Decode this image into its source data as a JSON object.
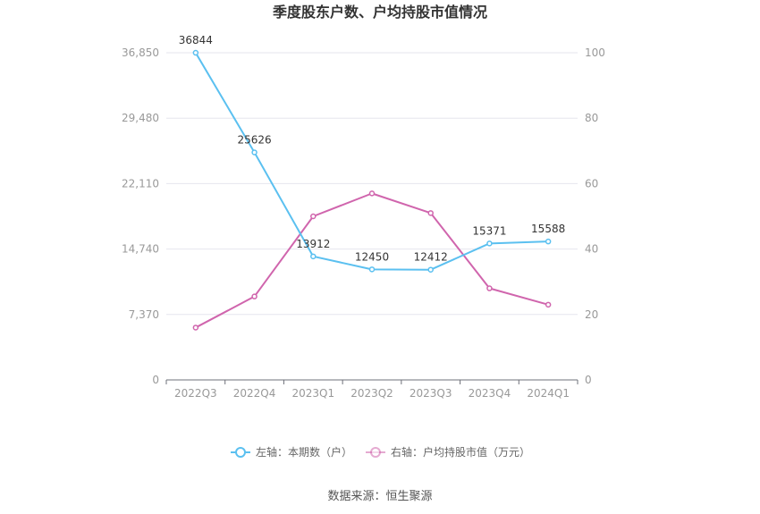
{
  "chart_data": {
    "type": "line",
    "title": "季度股东户数、户均持股市值情况",
    "categories": [
      "2022Q3",
      "2022Q4",
      "2023Q1",
      "2023Q2",
      "2023Q3",
      "2023Q4",
      "2024Q1"
    ],
    "left_axis": {
      "ticks": [
        "0",
        "7,370",
        "14,740",
        "22,110",
        "29,480",
        "36,850"
      ],
      "ylim": [
        0,
        36850
      ]
    },
    "right_axis": {
      "ticks": [
        "0",
        "20",
        "40",
        "60",
        "80",
        "100"
      ],
      "ylim": [
        0,
        100
      ]
    },
    "series": [
      {
        "name": "左轴：本期数（户）",
        "axis": "left",
        "color": "#5bc0f0",
        "values": [
          36844,
          25626,
          13912,
          12450,
          12412,
          15371,
          15588
        ],
        "labels": [
          "36844",
          "25626",
          "13912",
          "12450",
          "12412",
          "15371",
          "15588"
        ]
      },
      {
        "name": "右轴：户均持股市值（万元）",
        "axis": "right",
        "color": "#d065ad",
        "values": [
          16,
          25.5,
          50,
          57,
          51,
          28,
          23
        ]
      }
    ],
    "grid": true,
    "legend_position": "bottom"
  },
  "source_text": "数据来源：恒生聚源"
}
